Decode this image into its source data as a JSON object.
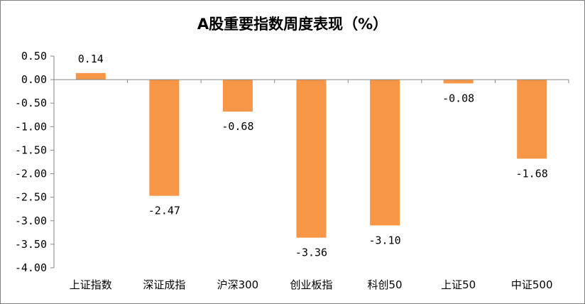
{
  "chart_data": {
    "type": "bar",
    "title": "A股重要指数周度表现（%）",
    "categories": [
      "上证指数",
      "深证成指",
      "沪深300",
      "创业板指",
      "科创50",
      "上证50",
      "中证500"
    ],
    "values": [
      0.14,
      -2.47,
      -0.68,
      -3.36,
      -3.1,
      -0.08,
      -1.68
    ],
    "value_labels": [
      "0.14",
      "-2.47",
      "-0.68",
      "-3.36",
      "-3.10",
      "-0.08",
      "-1.68"
    ],
    "ylim": [
      -4.0,
      0.5
    ],
    "yticks": [
      0.5,
      0.0,
      -0.5,
      -1.0,
      -1.5,
      -2.0,
      -2.5,
      -3.0,
      -3.5,
      -4.0
    ],
    "ytick_labels": [
      "0.50",
      "0.00",
      "-0.50",
      "-1.00",
      "-1.50",
      "-2.00",
      "-2.50",
      "-3.00",
      "-3.50",
      "-4.00"
    ],
    "xlabel": "",
    "ylabel": "",
    "grid": false,
    "legend": "none",
    "bar_color": "#F79646",
    "axis_color": "#868686"
  }
}
